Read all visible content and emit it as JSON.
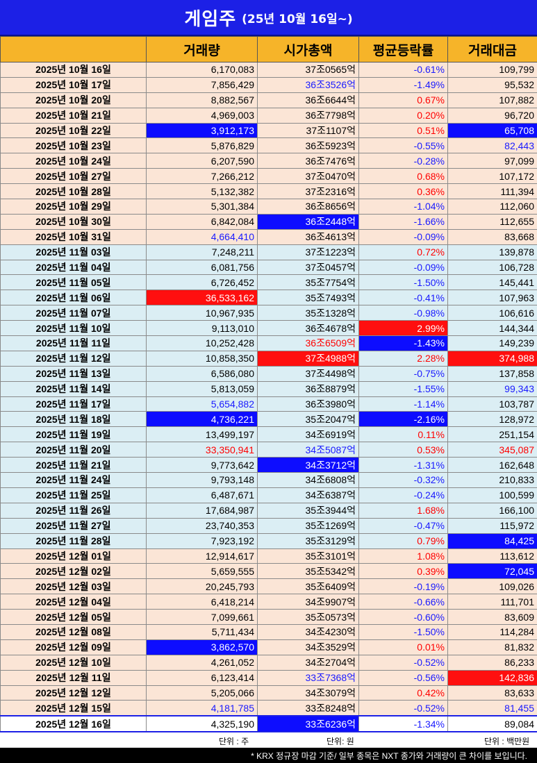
{
  "title": {
    "main": "게임주",
    "sub": "(25년 10월 16일~)"
  },
  "headers": [
    "",
    "거래량",
    "시가총액",
    "평균등락률",
    "거래대금"
  ],
  "rows": [
    {
      "g": "oct",
      "date": "2025년 10월 16일",
      "vol": "6,170,083",
      "cap": "37조0565억",
      "chg": "-0.61%",
      "amt": "109,799"
    },
    {
      "g": "oct",
      "date": "2025년 10월 17일",
      "vol": "7,856,429",
      "cap": "36조3526억",
      "chg": "-1.49%",
      "amt": "95,532",
      "cap_style": "t-blue"
    },
    {
      "g": "oct",
      "date": "2025년 10월 20일",
      "vol": "8,882,567",
      "cap": "36조6644억",
      "chg": "0.67%",
      "amt": "107,882"
    },
    {
      "g": "oct",
      "date": "2025년 10월 21일",
      "vol": "4,969,003",
      "cap": "36조7798억",
      "chg": "0.20%",
      "amt": "96,720"
    },
    {
      "g": "oct",
      "date": "2025년 10월 22일",
      "vol": "3,912,173",
      "cap": "37조1107억",
      "chg": "0.51%",
      "amt": "65,708",
      "vol_style": "hl-blue",
      "amt_style": "hl-blue"
    },
    {
      "g": "oct",
      "date": "2025년 10월 23일",
      "vol": "5,876,829",
      "cap": "36조5923억",
      "chg": "-0.55%",
      "amt": "82,443",
      "amt_style": "t-blue"
    },
    {
      "g": "oct",
      "date": "2025년 10월 24일",
      "vol": "6,207,590",
      "cap": "36조7476억",
      "chg": "-0.28%",
      "amt": "97,099"
    },
    {
      "g": "oct",
      "date": "2025년 10월 27일",
      "vol": "7,266,212",
      "cap": "37조0470억",
      "chg": "0.68%",
      "amt": "107,172"
    },
    {
      "g": "oct",
      "date": "2025년 10월 28일",
      "vol": "5,132,382",
      "cap": "37조2316억",
      "chg": "0.36%",
      "amt": "111,394"
    },
    {
      "g": "oct",
      "date": "2025년 10월 29일",
      "vol": "5,301,384",
      "cap": "36조8656억",
      "chg": "-1.04%",
      "amt": "112,060"
    },
    {
      "g": "oct",
      "date": "2025년 10월 30일",
      "vol": "6,842,084",
      "cap": "36조2448억",
      "chg": "-1.66%",
      "amt": "112,655",
      "cap_style": "hl-blue"
    },
    {
      "g": "oct",
      "date": "2025년 10월 31일",
      "vol": "4,664,410",
      "cap": "36조4613억",
      "chg": "-0.09%",
      "amt": "83,668",
      "vol_style": "t-blue"
    },
    {
      "g": "nov",
      "date": "2025년 11월 03일",
      "vol": "7,248,211",
      "cap": "37조1223억",
      "chg": "0.72%",
      "amt": "139,878"
    },
    {
      "g": "nov",
      "date": "2025년 11월 04일",
      "vol": "6,081,756",
      "cap": "37조0457억",
      "chg": "-0.09%",
      "amt": "106,728"
    },
    {
      "g": "nov",
      "date": "2025년 11월 05일",
      "vol": "6,726,452",
      "cap": "35조7754억",
      "chg": "-1.50%",
      "amt": "145,441"
    },
    {
      "g": "nov",
      "date": "2025년 11월 06일",
      "vol": "36,533,162",
      "cap": "35조7493억",
      "chg": "-0.41%",
      "amt": "107,963",
      "vol_style": "hl-red"
    },
    {
      "g": "nov",
      "date": "2025년 11월 07일",
      "vol": "10,967,935",
      "cap": "35조1328억",
      "chg": "-0.98%",
      "amt": "106,616"
    },
    {
      "g": "nov",
      "date": "2025년 11월 10일",
      "vol": "9,113,010",
      "cap": "36조4678억",
      "chg": "2.99%",
      "amt": "144,344",
      "chg_style": "hl-red"
    },
    {
      "g": "nov",
      "date": "2025년 11월 11일",
      "vol": "10,252,428",
      "cap": "36조6509억",
      "chg": "-1.43%",
      "amt": "149,239",
      "cap_style": "t-red",
      "chg_style": "hl-blue"
    },
    {
      "g": "nov",
      "date": "2025년 11월 12일",
      "vol": "10,858,350",
      "cap": "37조4988억",
      "chg": "2.28%",
      "amt": "374,988",
      "cap_style": "hl-red",
      "amt_style": "hl-red"
    },
    {
      "g": "nov",
      "date": "2025년 11월 13일",
      "vol": "6,586,080",
      "cap": "37조4498억",
      "chg": "-0.75%",
      "amt": "137,858"
    },
    {
      "g": "nov",
      "date": "2025년 11월 14일",
      "vol": "5,813,059",
      "cap": "36조8879억",
      "chg": "-1.55%",
      "amt": "99,343",
      "amt_style": "t-blue"
    },
    {
      "g": "nov",
      "date": "2025년 11월 17일",
      "vol": "5,654,882",
      "cap": "36조3980억",
      "chg": "-1.14%",
      "amt": "103,787",
      "vol_style": "t-blue"
    },
    {
      "g": "nov",
      "date": "2025년 11월 18일",
      "vol": "4,736,221",
      "cap": "35조2047억",
      "chg": "-2.16%",
      "amt": "128,972",
      "vol_style": "hl-blue",
      "chg_style": "hl-blue"
    },
    {
      "g": "nov",
      "date": "2025년 11월 19일",
      "vol": "13,499,197",
      "cap": "34조6919억",
      "chg": "0.11%",
      "amt": "251,154"
    },
    {
      "g": "nov",
      "date": "2025년 11월 20일",
      "vol": "33,350,941",
      "cap": "34조5087억",
      "chg": "0.53%",
      "amt": "345,087",
      "vol_style": "t-red",
      "cap_style": "t-blue",
      "amt_style": "t-red"
    },
    {
      "g": "nov",
      "date": "2025년 11월 21일",
      "vol": "9,773,642",
      "cap": "34조3712억",
      "chg": "-1.31%",
      "amt": "162,648",
      "cap_style": "hl-blue"
    },
    {
      "g": "nov",
      "date": "2025년 11월 24일",
      "vol": "9,793,148",
      "cap": "34조6808억",
      "chg": "-0.32%",
      "amt": "210,833"
    },
    {
      "g": "nov",
      "date": "2025년 11월 25일",
      "vol": "6,487,671",
      "cap": "34조6387억",
      "chg": "-0.24%",
      "amt": "100,599"
    },
    {
      "g": "nov",
      "date": "2025년 11월 26일",
      "vol": "17,684,987",
      "cap": "35조3944억",
      "chg": "1.68%",
      "amt": "166,100"
    },
    {
      "g": "nov",
      "date": "2025년 11월 27일",
      "vol": "23,740,353",
      "cap": "35조1269억",
      "chg": "-0.47%",
      "amt": "115,972"
    },
    {
      "g": "nov",
      "date": "2025년 11월 28일",
      "vol": "7,923,192",
      "cap": "35조3129억",
      "chg": "0.79%",
      "amt": "84,425",
      "amt_style": "hl-blue"
    },
    {
      "g": "dec",
      "date": "2025년 12월 01일",
      "vol": "12,914,617",
      "cap": "35조3101억",
      "chg": "1.08%",
      "amt": "113,612"
    },
    {
      "g": "dec",
      "date": "2025년 12월 02일",
      "vol": "5,659,555",
      "cap": "35조5342억",
      "chg": "0.39%",
      "amt": "72,045",
      "amt_style": "hl-blue"
    },
    {
      "g": "dec",
      "date": "2025년 12월 03일",
      "vol": "20,245,793",
      "cap": "35조6409억",
      "chg": "-0.19%",
      "amt": "109,026"
    },
    {
      "g": "dec",
      "date": "2025년 12월 04일",
      "vol": "6,418,214",
      "cap": "34조9907억",
      "chg": "-0.66%",
      "amt": "111,701"
    },
    {
      "g": "dec",
      "date": "2025년 12월 05일",
      "vol": "7,099,661",
      "cap": "35조0573억",
      "chg": "-0.60%",
      "amt": "83,609"
    },
    {
      "g": "dec",
      "date": "2025년 12월 08일",
      "vol": "5,711,434",
      "cap": "34조4230억",
      "chg": "-1.50%",
      "amt": "114,284"
    },
    {
      "g": "dec",
      "date": "2025년 12월 09일",
      "vol": "3,862,570",
      "cap": "34조3529억",
      "chg": "0.01%",
      "amt": "81,832",
      "vol_style": "hl-blue"
    },
    {
      "g": "dec",
      "date": "2025년 12월 10일",
      "vol": "4,261,052",
      "cap": "34조2704억",
      "chg": "-0.52%",
      "amt": "86,233"
    },
    {
      "g": "dec",
      "date": "2025년 12월 11일",
      "vol": "6,123,414",
      "cap": "33조7368억",
      "chg": "-0.56%",
      "amt": "142,836",
      "cap_style": "t-blue",
      "amt_style": "hl-red"
    },
    {
      "g": "dec",
      "date": "2025년 12월 12일",
      "vol": "5,205,066",
      "cap": "34조3079억",
      "chg": "0.42%",
      "amt": "83,633"
    },
    {
      "g": "dec",
      "date": "2025년 12월 15일",
      "vol": "4,181,785",
      "cap": "33조8248억",
      "chg": "-0.52%",
      "amt": "81,455",
      "vol_style": "t-blue",
      "amt_style": "t-blue"
    },
    {
      "g": "last",
      "date": "2025년 12월 16일",
      "vol": "4,325,190",
      "cap": "33조6236억",
      "chg": "-1.34%",
      "amt": "89,084",
      "cap_style": "hl-blue"
    }
  ],
  "units": {
    "volume": "단위 : 주",
    "cap": "단위: 원",
    "amount": "단위 : 백만원"
  },
  "footnote": "* KRX 정규장 마감 기준/ 일부 종목은 NXT 종가와 거래량이 큰 차이를 보입니다.",
  "colors": {
    "title_bg": "#1c20e6",
    "header_bg": "#f6b429",
    "oct_dec_row": "#fbe5d6",
    "nov_row": "#dbeef4",
    "highlight_blue": "#0d0dff",
    "highlight_red": "#ff0f0f"
  }
}
